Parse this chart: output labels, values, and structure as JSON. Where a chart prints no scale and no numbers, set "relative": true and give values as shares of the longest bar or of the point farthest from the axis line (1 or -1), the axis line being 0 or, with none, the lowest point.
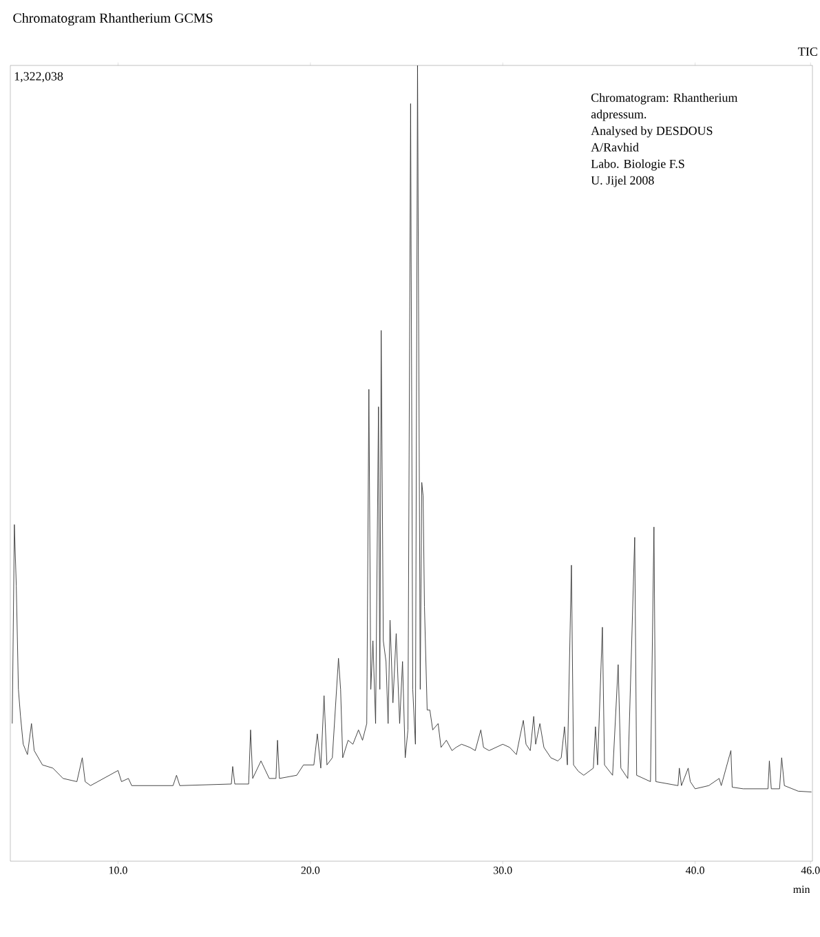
{
  "chart_data": {
    "type": "line",
    "title": "Chromatogram Rhantherium GCMS",
    "xlabel": "min",
    "relative": true,
    "annotations": [
      "TIC",
      "1,322,038",
      "Chromatogram: Rhantherium",
      "adpressum.",
      "Analysed by DESDOUS",
      "A/Ravhid",
      "Labo. Biologie F.S",
      "U. Jijel 2008"
    ],
    "xlim": [
      4.4,
      46.1
    ],
    "xticks": [
      {
        "value": 10,
        "label": "10.0"
      },
      {
        "value": 20,
        "label": "20.0"
      },
      {
        "value": 30,
        "label": "30.0"
      },
      {
        "value": 40,
        "label": "40.0"
      },
      {
        "value": 46,
        "label": "46.0"
      }
    ],
    "x": [
      4.5,
      4.61,
      4.71,
      4.82,
      4.93,
      5.07,
      5.29,
      5.5,
      5.64,
      6.07,
      6.61,
      7.14,
      7.86,
      8.14,
      8.29,
      8.57,
      10.0,
      10.18,
      10.54,
      10.71,
      12.86,
      13.04,
      13.21,
      15.89,
      15.96,
      16.07,
      16.79,
      16.89,
      17.0,
      17.43,
      17.86,
      18.21,
      18.29,
      18.39,
      19.29,
      19.64,
      20.18,
      20.36,
      20.54,
      20.71,
      20.86,
      21.14,
      21.46,
      21.57,
      21.68,
      21.96,
      22.21,
      22.5,
      22.71,
      22.93,
      23.04,
      23.14,
      23.25,
      23.39,
      23.54,
      23.61,
      23.68,
      23.79,
      23.93,
      24.04,
      24.14,
      24.29,
      24.46,
      24.64,
      24.79,
      24.93,
      25.07,
      25.21,
      25.32,
      25.46,
      25.57,
      25.71,
      25.79,
      25.86,
      25.93,
      26.07,
      26.21,
      26.36,
      26.64,
      26.79,
      27.07,
      27.36,
      27.57,
      27.86,
      28.29,
      28.57,
      28.86,
      29.0,
      29.29,
      30.0,
      30.36,
      30.71,
      30.89,
      31.07,
      31.21,
      31.43,
      31.61,
      31.71,
      31.93,
      32.14,
      32.5,
      32.86,
      33.04,
      33.21,
      33.36,
      33.57,
      33.68,
      33.93,
      34.21,
      34.71,
      34.82,
      34.93,
      35.18,
      35.29,
      35.71,
      36.0,
      36.14,
      36.5,
      36.86,
      36.96,
      37.68,
      37.86,
      37.96,
      39.11,
      39.18,
      39.29,
      39.64,
      39.75,
      40.0,
      40.71,
      41.25,
      41.36,
      41.86,
      41.93,
      42.5,
      43.79,
      43.86,
      43.96,
      44.39,
      44.5,
      44.64,
      45.36,
      46.05
    ],
    "series": [
      {
        "color": "#333333",
        "values": [
          0.173,
          0.423,
          0.346,
          0.216,
          0.182,
          0.147,
          0.134,
          0.173,
          0.139,
          0.121,
          0.117,
          0.104,
          0.1,
          0.13,
          0.1,
          0.095,
          0.114,
          0.1,
          0.104,
          0.095,
          0.095,
          0.108,
          0.095,
          0.097,
          0.119,
          0.097,
          0.097,
          0.165,
          0.104,
          0.126,
          0.104,
          0.104,
          0.152,
          0.104,
          0.108,
          0.121,
          0.121,
          0.16,
          0.117,
          0.208,
          0.121,
          0.13,
          0.255,
          0.216,
          0.13,
          0.152,
          0.147,
          0.165,
          0.152,
          0.173,
          0.593,
          0.216,
          0.277,
          0.173,
          0.571,
          0.216,
          0.667,
          0.277,
          0.251,
          0.173,
          0.303,
          0.199,
          0.286,
          0.173,
          0.251,
          0.13,
          0.165,
          0.952,
          0.216,
          0.147,
          1.0,
          0.216,
          0.476,
          0.459,
          0.32,
          0.19,
          0.19,
          0.165,
          0.173,
          0.143,
          0.152,
          0.139,
          0.143,
          0.147,
          0.143,
          0.139,
          0.165,
          0.143,
          0.139,
          0.147,
          0.143,
          0.134,
          0.156,
          0.177,
          0.147,
          0.139,
          0.182,
          0.147,
          0.173,
          0.143,
          0.13,
          0.126,
          0.13,
          0.169,
          0.121,
          0.372,
          0.121,
          0.113,
          0.108,
          0.117,
          0.169,
          0.121,
          0.294,
          0.121,
          0.108,
          0.247,
          0.117,
          0.104,
          0.407,
          0.108,
          0.1,
          0.42,
          0.1,
          0.095,
          0.117,
          0.095,
          0.117,
          0.1,
          0.091,
          0.095,
          0.104,
          0.095,
          0.139,
          0.093,
          0.091,
          0.091,
          0.126,
          0.091,
          0.091,
          0.13,
          0.095,
          0.088,
          0.087
        ]
      }
    ]
  }
}
